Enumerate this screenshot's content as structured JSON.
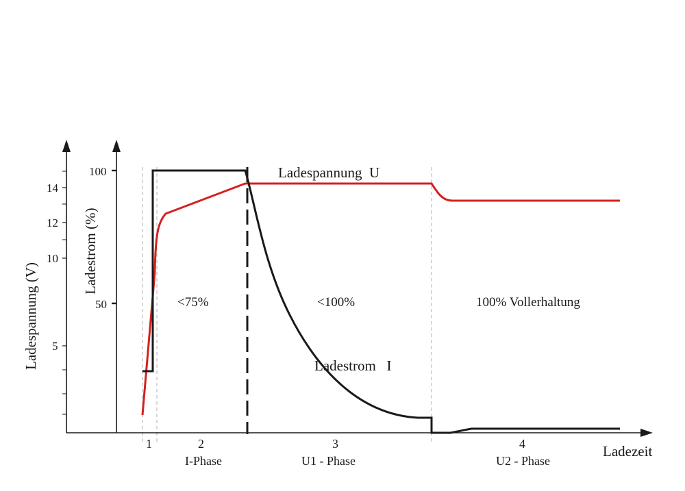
{
  "chart_data": {
    "type": "line",
    "title": "",
    "xlabel": "Ladezeit",
    "ylabel_voltage": "Ladespannung (V)",
    "ylabel_current": "Ladestrom  (%)",
    "voltage_ticks": [
      "14",
      "12",
      "10",
      "5"
    ],
    "current_ticks": [
      "100",
      "50"
    ],
    "phases": [
      {
        "number": "1",
        "name": ""
      },
      {
        "number": "2",
        "name": "I-Phase"
      },
      {
        "number": "3",
        "name": "U1 - Phase"
      },
      {
        "number": "4",
        "name": "U2 - Phase"
      }
    ],
    "region_labels": [
      "<75%",
      "<100%",
      "100% Vollerhaltung"
    ],
    "series": [
      {
        "name": "Ladespannung  U",
        "color": "#d42020",
        "axis": "voltage"
      },
      {
        "name": "Ladestrom   I",
        "color": "#1a1a1a",
        "axis": "current"
      }
    ]
  }
}
